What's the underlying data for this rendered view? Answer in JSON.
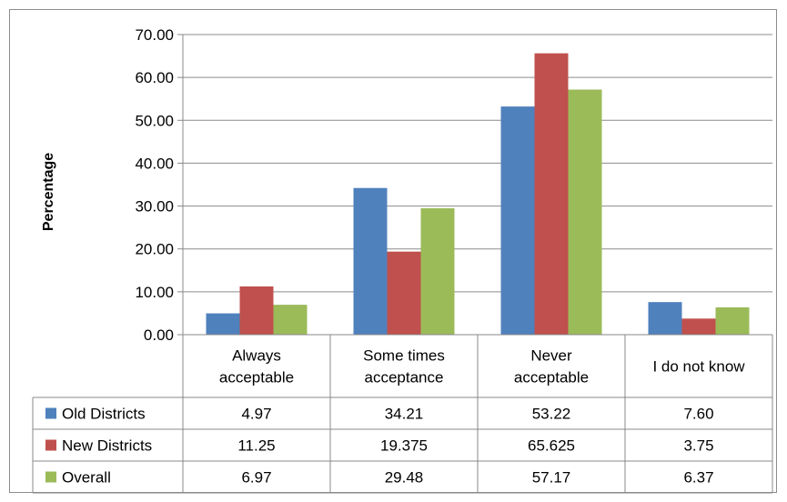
{
  "chart_data": {
    "type": "bar",
    "ylabel": "Percentage",
    "xlabel": "",
    "ylim": [
      0,
      70
    ],
    "yticks": [
      "0.00",
      "10.00",
      "20.00",
      "30.00",
      "40.00",
      "50.00",
      "60.00",
      "70.00"
    ],
    "grid": true,
    "categories": [
      [
        "Always",
        "acceptable"
      ],
      [
        "Some times",
        "acceptance"
      ],
      [
        "Never",
        "acceptable"
      ],
      [
        "I do not know"
      ]
    ],
    "series": [
      {
        "name": "Old Districts",
        "color": "#4F81BD",
        "values": [
          4.97,
          34.21,
          53.22,
          7.6
        ],
        "labels": [
          "4.97",
          "34.21",
          "53.22",
          "7.60"
        ]
      },
      {
        "name": "New Districts",
        "color": "#C0504D",
        "values": [
          11.25,
          19.375,
          65.625,
          3.75
        ],
        "labels": [
          "11.25",
          "19.375",
          "65.625",
          "3.75"
        ]
      },
      {
        "name": "Overall",
        "color": "#9BBB59",
        "values": [
          6.97,
          29.48,
          57.17,
          6.37
        ],
        "labels": [
          "6.97",
          "29.48",
          "57.17",
          "6.37"
        ]
      }
    ]
  }
}
